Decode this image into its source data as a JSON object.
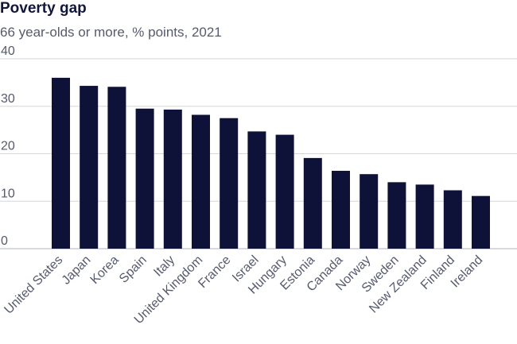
{
  "chart_data": {
    "type": "bar",
    "title": "Poverty gap",
    "subtitle": "66 year-olds or more, % points, 2021",
    "xlabel": "",
    "ylabel": "",
    "ylim": [
      0,
      40
    ],
    "yticks": [
      0,
      10,
      20,
      30,
      40
    ],
    "grid": true,
    "categories": [
      "United States",
      "Japan",
      "Korea",
      "Spain",
      "Italy",
      "United Kingdom",
      "France",
      "Israel",
      "Hungary",
      "Estonia",
      "Canada",
      "Norway",
      "Sweden",
      "New Zealand",
      "Finland",
      "Ireland"
    ],
    "values": [
      36,
      34.3,
      34.1,
      29.5,
      29.3,
      28.2,
      27.5,
      24.7,
      24,
      19.1,
      16.4,
      15.7,
      14,
      13.5,
      12.3,
      11.1
    ],
    "colors": {
      "bar": "#0f1238",
      "title": "#12163a",
      "text": "#555a6e",
      "grid": "#d4d6de"
    }
  }
}
